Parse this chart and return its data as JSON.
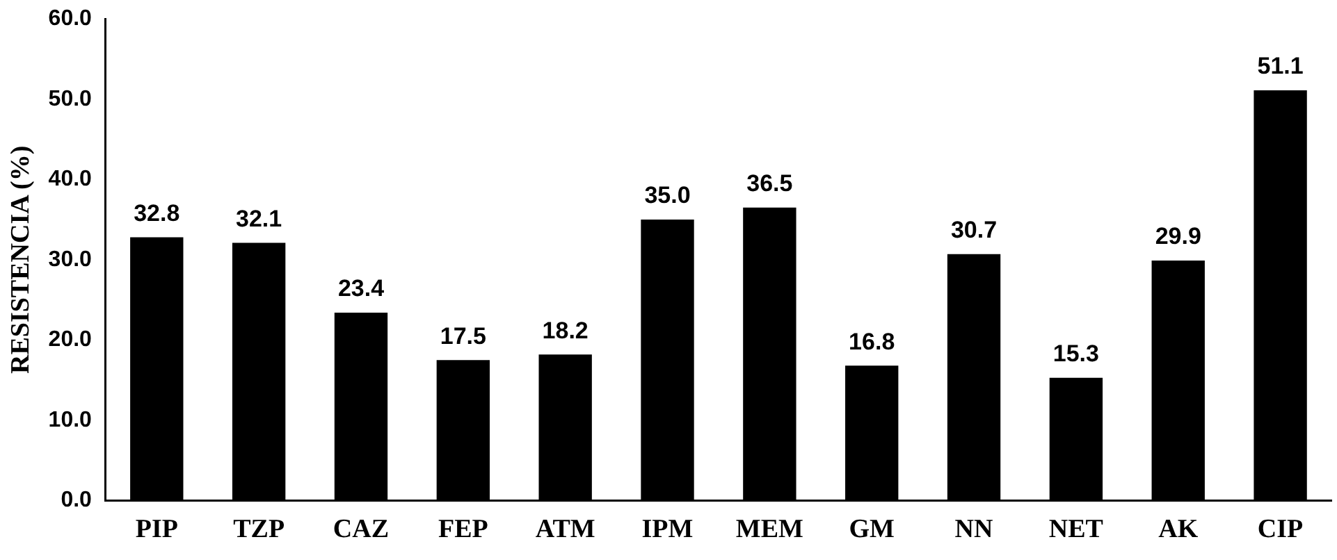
{
  "chart_data": {
    "type": "bar",
    "ylabel": "RESISTENCIA (%)",
    "categories": [
      "PIP",
      "TZP",
      "CAZ",
      "FEP",
      "ATM",
      "IPM",
      "MEM",
      "GM",
      "NN",
      "NET",
      "AK",
      "CIP"
    ],
    "values": [
      32.8,
      32.1,
      23.4,
      17.5,
      18.2,
      35.0,
      36.5,
      16.8,
      30.7,
      15.3,
      29.9,
      51.1
    ],
    "value_labels": [
      "32.8",
      "32.1",
      "23.4",
      "17.5",
      "18.2",
      "35.0",
      "36.5",
      "16.8",
      "30.7",
      "15.3",
      "29.9",
      "51.1"
    ],
    "color": "#000000",
    "grid": false,
    "legend": false,
    "ylim": [
      0,
      60
    ],
    "yticks": [
      {
        "value": 0,
        "label": "0.0"
      },
      {
        "value": 10,
        "label": "10.0"
      },
      {
        "value": 20,
        "label": "20.0"
      },
      {
        "value": 30,
        "label": "30.0"
      },
      {
        "value": 40,
        "label": "40.0"
      },
      {
        "value": 50,
        "label": "50.0"
      },
      {
        "value": 60,
        "label": "60.0"
      }
    ]
  }
}
